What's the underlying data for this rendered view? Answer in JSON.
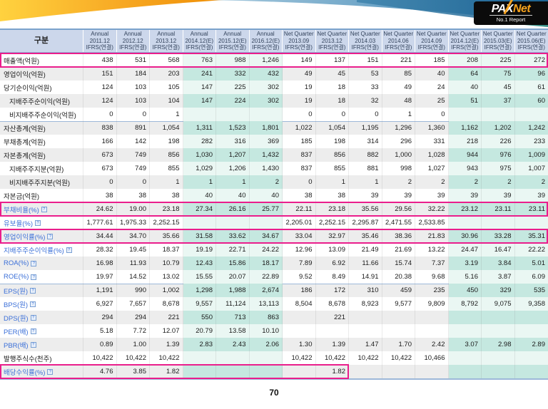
{
  "logo": {
    "brand_pa": "PA",
    "brand_x": "X",
    "brand_net": "Net",
    "tagline": "No.1 Report"
  },
  "footer": {
    "page_number": "70"
  },
  "colors": {
    "accent_pink": "#ea1e8c",
    "header_bg": "#ccd7eb",
    "forecast_tint_gray_row": "#c5e8e0",
    "forecast_tint_white_row": "#eaf7f3",
    "link_blue": "#3a6fd8",
    "banner_orange": "#f7a823",
    "banner_blue": "#2e7cae",
    "logo_bg": "#0b0b0b",
    "logo_accent": "#f6a21c"
  },
  "table": {
    "label_header": "구분",
    "columns": [
      {
        "period": "Annual",
        "date": "2011.12",
        "standard": "IFRS(연결)",
        "forecast": false
      },
      {
        "period": "Annual",
        "date": "2012.12",
        "standard": "IFRS(연결)",
        "forecast": false
      },
      {
        "period": "Annual",
        "date": "2013.12",
        "standard": "IFRS(연결)",
        "forecast": false
      },
      {
        "period": "Annual",
        "date": "2014.12(E)",
        "standard": "IFRS(연결)",
        "forecast": true
      },
      {
        "period": "Annual",
        "date": "2015.12(E)",
        "standard": "IFRS(연결)",
        "forecast": true
      },
      {
        "period": "Annual",
        "date": "2016.12(E)",
        "standard": "IFRS(연결)",
        "forecast": true
      },
      {
        "period": "Net Quarter",
        "date": "2013.09",
        "standard": "IFRS(연결)",
        "forecast": false
      },
      {
        "period": "Net Quarter",
        "date": "2013.12",
        "standard": "IFRS(연결)",
        "forecast": false
      },
      {
        "period": "Net Quarter",
        "date": "2014.03",
        "standard": "IFRS(연결)",
        "forecast": false
      },
      {
        "period": "Net Quarter",
        "date": "2014.06",
        "standard": "IFRS(연결)",
        "forecast": false
      },
      {
        "period": "Net Quarter",
        "date": "2014.09",
        "standard": "IFRS(연결)",
        "forecast": false
      },
      {
        "period": "Net Quarter",
        "date": "2014.12(E)",
        "standard": "IFRS(연결)",
        "forecast": true
      },
      {
        "period": "Net Quarter",
        "date": "2015.03(E)",
        "standard": "IFRS(연결)",
        "forecast": true
      },
      {
        "period": "Net Quarter",
        "date": "2015.06(E)",
        "standard": "IFRS(연결)",
        "forecast": true
      }
    ],
    "rows": [
      {
        "label": "매출액(억원)",
        "highlight_span": 14,
        "values": [
          "438",
          "531",
          "568",
          "763",
          "988",
          "1,246",
          "149",
          "137",
          "151",
          "221",
          "185",
          "208",
          "225",
          "272"
        ]
      },
      {
        "label": "영업이익(억원)",
        "values": [
          "151",
          "184",
          "203",
          "241",
          "332",
          "432",
          "49",
          "45",
          "53",
          "85",
          "40",
          "64",
          "75",
          "96"
        ]
      },
      {
        "label": "당기순이익(억원)",
        "values": [
          "124",
          "103",
          "105",
          "147",
          "225",
          "302",
          "19",
          "18",
          "33",
          "49",
          "24",
          "40",
          "45",
          "61"
        ]
      },
      {
        "label": "지배주주순이익(억원)",
        "indent": true,
        "values": [
          "124",
          "103",
          "104",
          "147",
          "224",
          "302",
          "19",
          "18",
          "32",
          "48",
          "25",
          "51",
          "37",
          "60"
        ]
      },
      {
        "label": "비지배주주순이익(억원)",
        "indent": true,
        "values": [
          "0",
          "0",
          "1",
          "",
          "",
          "",
          "0",
          "0",
          "0",
          "1",
          "0",
          "",
          "",
          ""
        ]
      },
      {
        "label": "자산총계(억원)",
        "section": true,
        "values": [
          "838",
          "891",
          "1,054",
          "1,311",
          "1,523",
          "1,801",
          "1,022",
          "1,054",
          "1,195",
          "1,296",
          "1,360",
          "1,162",
          "1,202",
          "1,242"
        ]
      },
      {
        "label": "부채총계(억원)",
        "values": [
          "166",
          "142",
          "198",
          "282",
          "316",
          "369",
          "185",
          "198",
          "314",
          "296",
          "331",
          "218",
          "226",
          "233"
        ]
      },
      {
        "label": "자본총계(억원)",
        "values": [
          "673",
          "749",
          "856",
          "1,030",
          "1,207",
          "1,432",
          "837",
          "856",
          "882",
          "1,000",
          "1,028",
          "944",
          "976",
          "1,009"
        ]
      },
      {
        "label": "지배주주지분(억원)",
        "indent": true,
        "values": [
          "673",
          "749",
          "855",
          "1,029",
          "1,206",
          "1,430",
          "837",
          "855",
          "881",
          "998",
          "1,027",
          "943",
          "975",
          "1,007"
        ]
      },
      {
        "label": "비지배주주지분(억원)",
        "indent": true,
        "values": [
          "0",
          "0",
          "1",
          "1",
          "1",
          "2",
          "0",
          "1",
          "1",
          "2",
          "2",
          "2",
          "2",
          "2"
        ]
      },
      {
        "label": "자본금(억원)",
        "values": [
          "38",
          "38",
          "38",
          "40",
          "40",
          "40",
          "38",
          "38",
          "39",
          "39",
          "39",
          "39",
          "39",
          "39"
        ]
      },
      {
        "label": "부채비율(%)",
        "link": true,
        "highlight_span": 14,
        "values": [
          "24.62",
          "19.00",
          "23.18",
          "27.34",
          "26.16",
          "25.77",
          "22.11",
          "23.18",
          "35.56",
          "29.56",
          "32.22",
          "23.12",
          "23.11",
          "23.11"
        ]
      },
      {
        "label": "유보율(%)",
        "link": true,
        "values": [
          "1,777.61",
          "1,975.33",
          "2,252.15",
          "",
          "",
          "",
          "2,205.01",
          "2,252.15",
          "2,295.87",
          "2,471.55",
          "2,533.85",
          "",
          "",
          ""
        ]
      },
      {
        "label": "영업이익률(%)",
        "link": true,
        "highlight_span": 14,
        "values": [
          "34.44",
          "34.70",
          "35.66",
          "31.58",
          "33.62",
          "34.67",
          "33.04",
          "32.97",
          "35.46",
          "38.36",
          "21.83",
          "30.96",
          "33.28",
          "35.31"
        ]
      },
      {
        "label": "지배주주순이익률(%)",
        "link": true,
        "values": [
          "28.32",
          "19.45",
          "18.37",
          "19.19",
          "22.71",
          "24.22",
          "12.96",
          "13.09",
          "21.49",
          "21.69",
          "13.22",
          "24.47",
          "16.47",
          "22.22"
        ]
      },
      {
        "label": "ROA(%)",
        "link": true,
        "values": [
          "16.98",
          "11.93",
          "10.79",
          "12.43",
          "15.86",
          "18.17",
          "7.89",
          "6.92",
          "11.66",
          "15.74",
          "7.37",
          "3.19",
          "3.84",
          "5.01"
        ]
      },
      {
        "label": "ROE(%)",
        "link": true,
        "values": [
          "19.97",
          "14.52",
          "13.02",
          "15.55",
          "20.07",
          "22.89",
          "9.52",
          "8.49",
          "14.91",
          "20.38",
          "9.68",
          "5.16",
          "3.87",
          "6.09"
        ]
      },
      {
        "label": "EPS(원)",
        "link": true,
        "section": true,
        "values": [
          "1,191",
          "990",
          "1,002",
          "1,298",
          "1,988",
          "2,674",
          "186",
          "172",
          "310",
          "459",
          "235",
          "450",
          "329",
          "535"
        ]
      },
      {
        "label": "BPS(원)",
        "link": true,
        "values": [
          "6,927",
          "7,657",
          "8,678",
          "9,557",
          "11,124",
          "13,113",
          "8,504",
          "8,678",
          "8,923",
          "9,577",
          "9,809",
          "8,792",
          "9,075",
          "9,358"
        ]
      },
      {
        "label": "DPS(원)",
        "link": true,
        "values": [
          "294",
          "294",
          "221",
          "550",
          "713",
          "863",
          "",
          "221",
          "",
          "",
          "",
          "",
          "",
          ""
        ]
      },
      {
        "label": "PER(배)",
        "link": true,
        "values": [
          "5.18",
          "7.72",
          "12.07",
          "20.79",
          "13.58",
          "10.10",
          "",
          "",
          "",
          "",
          "",
          "",
          "",
          ""
        ]
      },
      {
        "label": "PBR(배)",
        "link": true,
        "values": [
          "0.89",
          "1.00",
          "1.39",
          "2.83",
          "2.43",
          "2.06",
          "1.30",
          "1.39",
          "1.47",
          "1.70",
          "2.42",
          "3.07",
          "2.98",
          "2.89"
        ]
      },
      {
        "label": "발행주식수(천주)",
        "values": [
          "10,422",
          "10,422",
          "10,422",
          "",
          "",
          "",
          "10,422",
          "10,422",
          "10,422",
          "10,422",
          "10,466",
          "",
          "",
          ""
        ]
      },
      {
        "label": "배당수익률(%)",
        "link": true,
        "highlight_span": 8,
        "values": [
          "4.76",
          "3.85",
          "1.82",
          "",
          "",
          "",
          "",
          "1.82",
          "",
          "",
          "",
          "",
          "",
          ""
        ]
      }
    ]
  }
}
